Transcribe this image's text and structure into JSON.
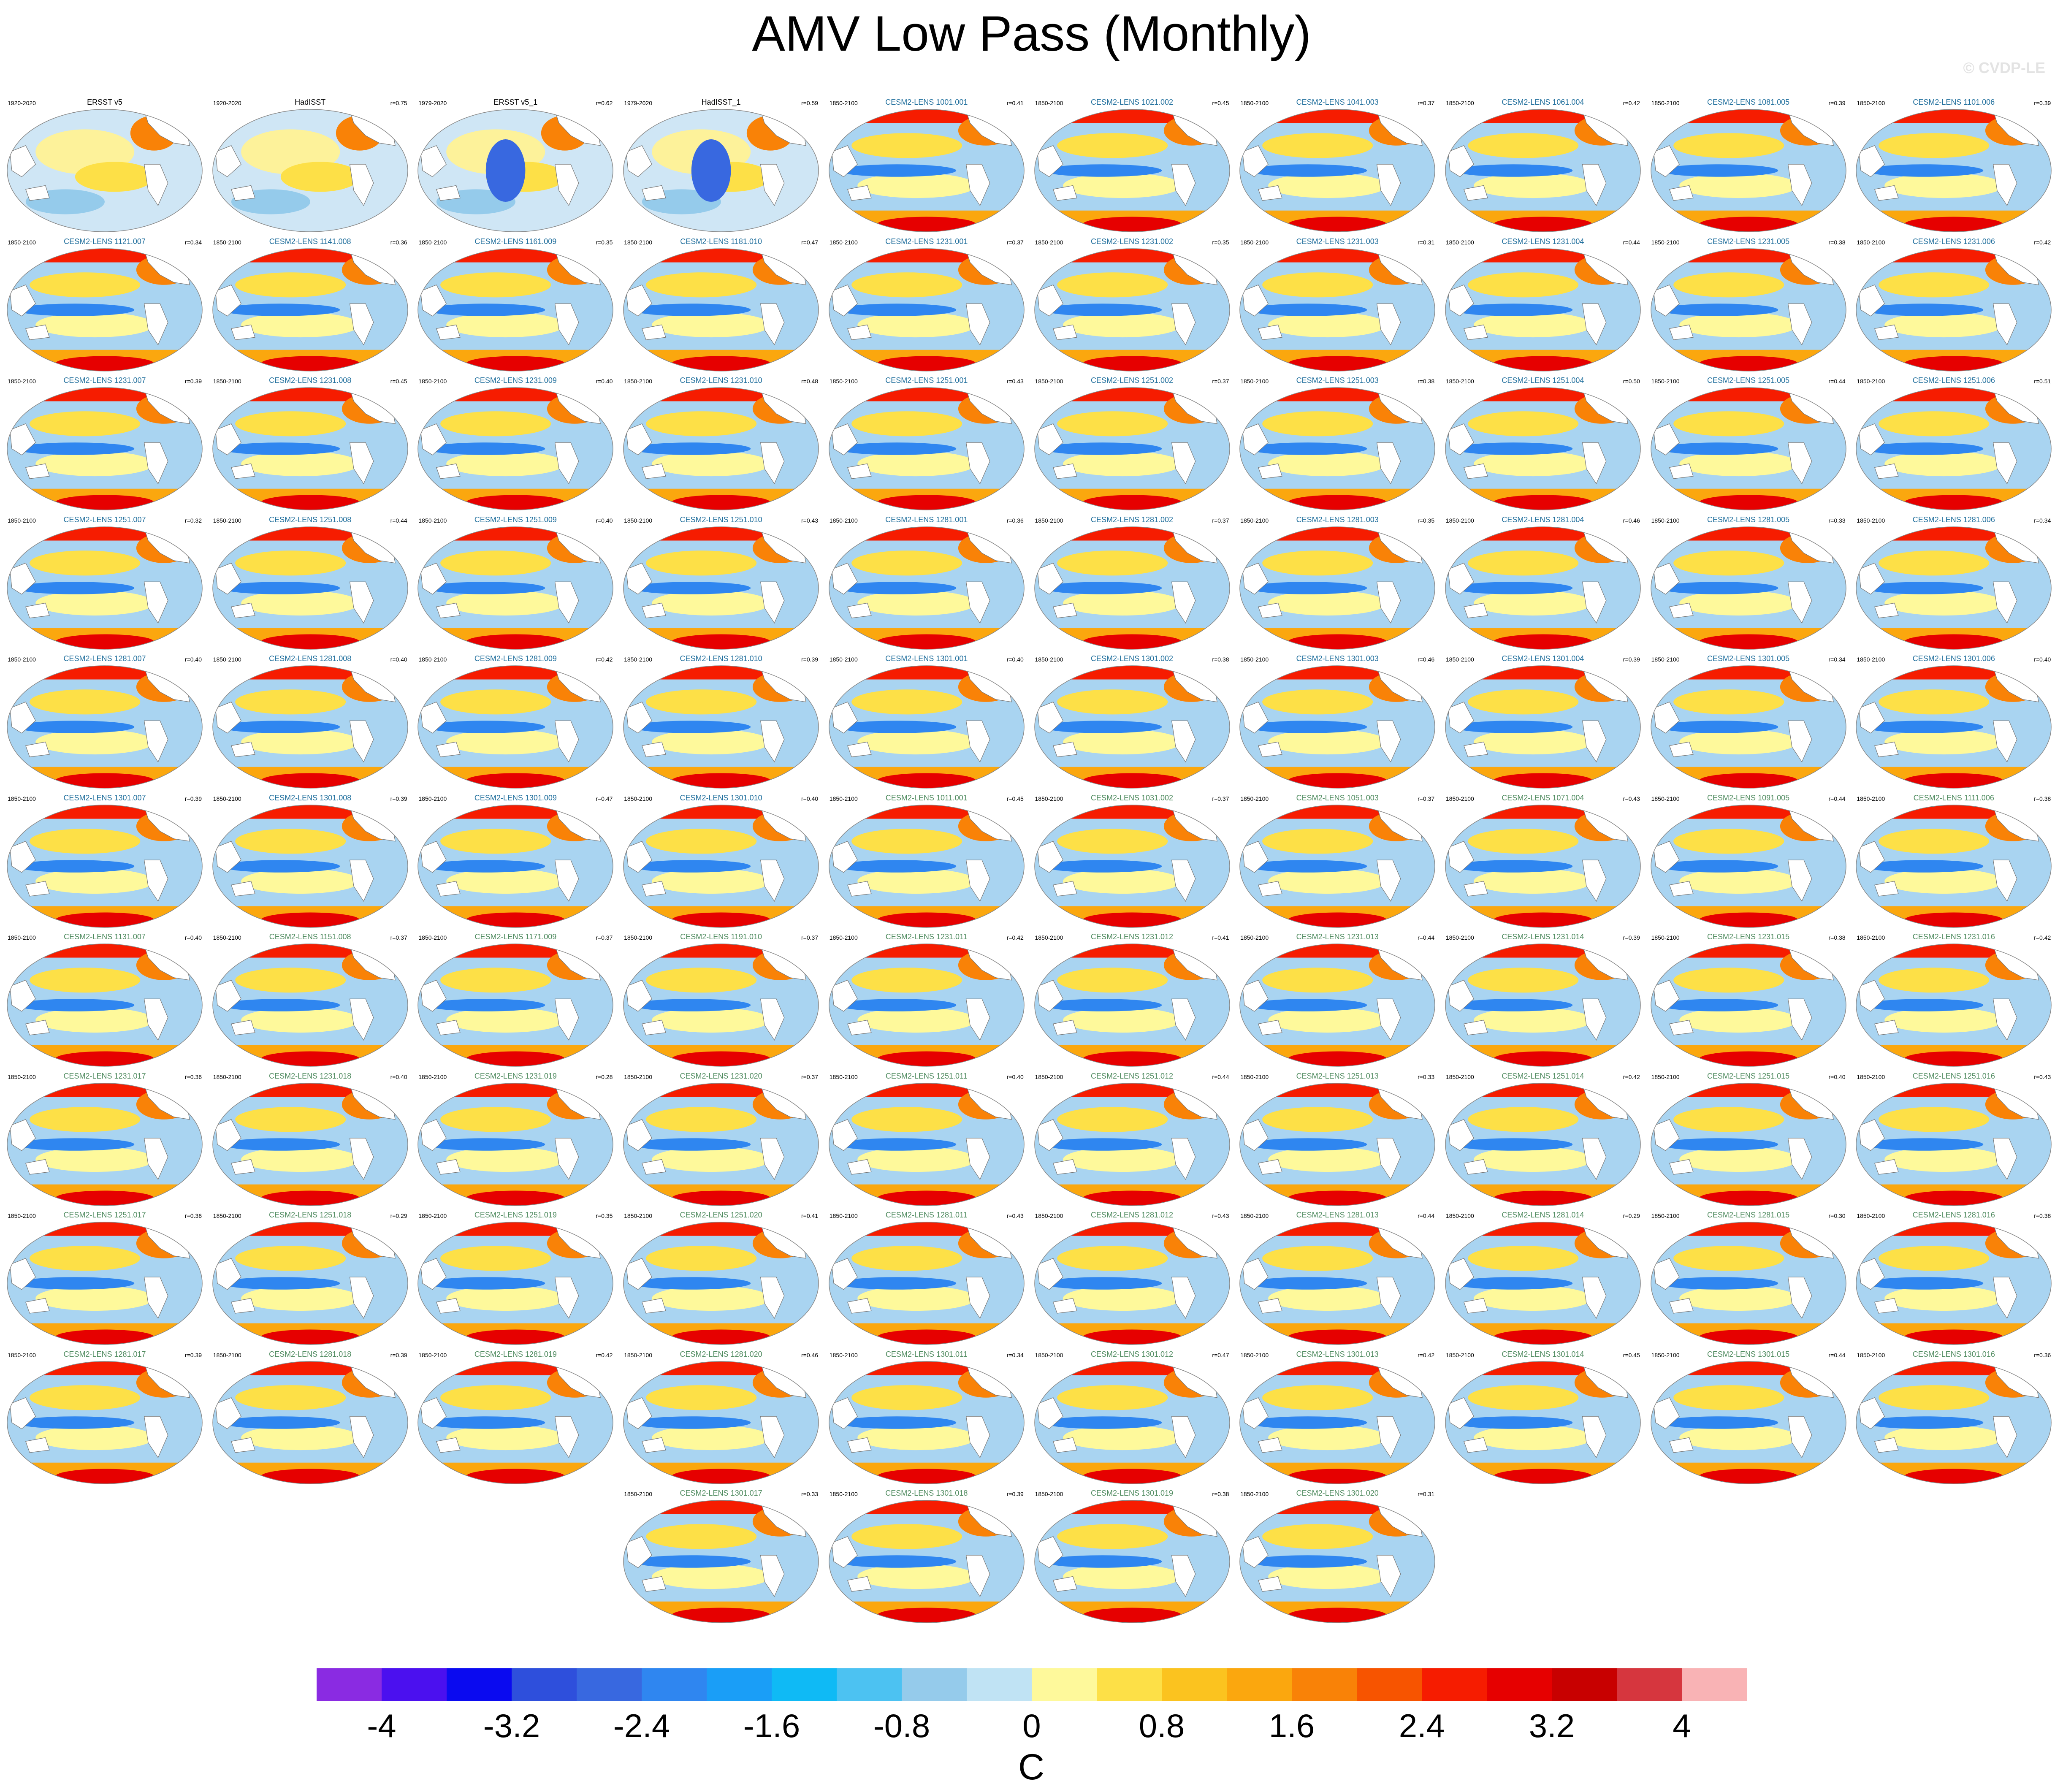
{
  "page": {
    "title": "AMV Low Pass (Monthly)",
    "watermark": "© CVDP-LE"
  },
  "panels": [
    {
      "title": "ERSST v5",
      "period": "1920-2020",
      "r": "",
      "kind": "obs"
    },
    {
      "title": "HadISST",
      "period": "1920-2020",
      "r": "r=0.75",
      "kind": "obs"
    },
    {
      "title": "ERSST v5_1",
      "period": "1979-2020",
      "r": "r=0.62",
      "kind": "obs"
    },
    {
      "title": "HadISST_1",
      "period": "1979-2020",
      "r": "r=0.59",
      "kind": "obs"
    },
    {
      "title": "CESM2-LENS 1001.001",
      "period": "1850-2100",
      "r": "r=0.41",
      "kind": "m1"
    },
    {
      "title": "CESM2-LENS 1021.002",
      "period": "1850-2100",
      "r": "r=0.45",
      "kind": "m1"
    },
    {
      "title": "CESM2-LENS 1041.003",
      "period": "1850-2100",
      "r": "r=0.37",
      "kind": "m1"
    },
    {
      "title": "CESM2-LENS 1061.004",
      "period": "1850-2100",
      "r": "r=0.42",
      "kind": "m1"
    },
    {
      "title": "CESM2-LENS 1081.005",
      "period": "1850-2100",
      "r": "r=0.39",
      "kind": "m1"
    },
    {
      "title": "CESM2-LENS 1101.006",
      "period": "1850-2100",
      "r": "r=0.39",
      "kind": "m1"
    },
    {
      "title": "CESM2-LENS 1121.007",
      "period": "1850-2100",
      "r": "r=0.34",
      "kind": "m1"
    },
    {
      "title": "CESM2-LENS 1141.008",
      "period": "1850-2100",
      "r": "r=0.36",
      "kind": "m1"
    },
    {
      "title": "CESM2-LENS 1161.009",
      "period": "1850-2100",
      "r": "r=0.35",
      "kind": "m1"
    },
    {
      "title": "CESM2-LENS 1181.010",
      "period": "1850-2100",
      "r": "r=0.47",
      "kind": "m1"
    },
    {
      "title": "CESM2-LENS 1231.001",
      "period": "1850-2100",
      "r": "r=0.37",
      "kind": "m1"
    },
    {
      "title": "CESM2-LENS 1231.002",
      "period": "1850-2100",
      "r": "r=0.35",
      "kind": "m1"
    },
    {
      "title": "CESM2-LENS 1231.003",
      "period": "1850-2100",
      "r": "r=0.31",
      "kind": "m1"
    },
    {
      "title": "CESM2-LENS 1231.004",
      "period": "1850-2100",
      "r": "r=0.44",
      "kind": "m1"
    },
    {
      "title": "CESM2-LENS 1231.005",
      "period": "1850-2100",
      "r": "r=0.38",
      "kind": "m1"
    },
    {
      "title": "CESM2-LENS 1231.006",
      "period": "1850-2100",
      "r": "r=0.42",
      "kind": "m1"
    },
    {
      "title": "CESM2-LENS 1231.007",
      "period": "1850-2100",
      "r": "r=0.39",
      "kind": "m1"
    },
    {
      "title": "CESM2-LENS 1231.008",
      "period": "1850-2100",
      "r": "r=0.45",
      "kind": "m1"
    },
    {
      "title": "CESM2-LENS 1231.009",
      "period": "1850-2100",
      "r": "r=0.40",
      "kind": "m1"
    },
    {
      "title": "CESM2-LENS 1231.010",
      "period": "1850-2100",
      "r": "r=0.48",
      "kind": "m1"
    },
    {
      "title": "CESM2-LENS 1251.001",
      "period": "1850-2100",
      "r": "r=0.43",
      "kind": "m1"
    },
    {
      "title": "CESM2-LENS 1251.002",
      "period": "1850-2100",
      "r": "r=0.37",
      "kind": "m1"
    },
    {
      "title": "CESM2-LENS 1251.003",
      "period": "1850-2100",
      "r": "r=0.38",
      "kind": "m1"
    },
    {
      "title": "CESM2-LENS 1251.004",
      "period": "1850-2100",
      "r": "r=0.50",
      "kind": "m1"
    },
    {
      "title": "CESM2-LENS 1251.005",
      "period": "1850-2100",
      "r": "r=0.44",
      "kind": "m1"
    },
    {
      "title": "CESM2-LENS 1251.006",
      "period": "1850-2100",
      "r": "r=0.51",
      "kind": "m1"
    },
    {
      "title": "CESM2-LENS 1251.007",
      "period": "1850-2100",
      "r": "r=0.32",
      "kind": "m1"
    },
    {
      "title": "CESM2-LENS 1251.008",
      "period": "1850-2100",
      "r": "r=0.44",
      "kind": "m1"
    },
    {
      "title": "CESM2-LENS 1251.009",
      "period": "1850-2100",
      "r": "r=0.40",
      "kind": "m1"
    },
    {
      "title": "CESM2-LENS 1251.010",
      "period": "1850-2100",
      "r": "r=0.43",
      "kind": "m1"
    },
    {
      "title": "CESM2-LENS 1281.001",
      "period": "1850-2100",
      "r": "r=0.36",
      "kind": "m1"
    },
    {
      "title": "CESM2-LENS 1281.002",
      "period": "1850-2100",
      "r": "r=0.37",
      "kind": "m1"
    },
    {
      "title": "CESM2-LENS 1281.003",
      "period": "1850-2100",
      "r": "r=0.35",
      "kind": "m1"
    },
    {
      "title": "CESM2-LENS 1281.004",
      "period": "1850-2100",
      "r": "r=0.46",
      "kind": "m1"
    },
    {
      "title": "CESM2-LENS 1281.005",
      "period": "1850-2100",
      "r": "r=0.33",
      "kind": "m1"
    },
    {
      "title": "CESM2-LENS 1281.006",
      "period": "1850-2100",
      "r": "r=0.34",
      "kind": "m1"
    },
    {
      "title": "CESM2-LENS 1281.007",
      "period": "1850-2100",
      "r": "r=0.40",
      "kind": "m1"
    },
    {
      "title": "CESM2-LENS 1281.008",
      "period": "1850-2100",
      "r": "r=0.40",
      "kind": "m1"
    },
    {
      "title": "CESM2-LENS 1281.009",
      "period": "1850-2100",
      "r": "r=0.42",
      "kind": "m1"
    },
    {
      "title": "CESM2-LENS 1281.010",
      "period": "1850-2100",
      "r": "r=0.39",
      "kind": "m1"
    },
    {
      "title": "CESM2-LENS 1301.001",
      "period": "1850-2100",
      "r": "r=0.40",
      "kind": "m1"
    },
    {
      "title": "CESM2-LENS 1301.002",
      "period": "1850-2100",
      "r": "r=0.38",
      "kind": "m1"
    },
    {
      "title": "CESM2-LENS 1301.003",
      "period": "1850-2100",
      "r": "r=0.46",
      "kind": "m1"
    },
    {
      "title": "CESM2-LENS 1301.004",
      "period": "1850-2100",
      "r": "r=0.39",
      "kind": "m1"
    },
    {
      "title": "CESM2-LENS 1301.005",
      "period": "1850-2100",
      "r": "r=0.34",
      "kind": "m1"
    },
    {
      "title": "CESM2-LENS 1301.006",
      "period": "1850-2100",
      "r": "r=0.40",
      "kind": "m1"
    },
    {
      "title": "CESM2-LENS 1301.007",
      "period": "1850-2100",
      "r": "r=0.39",
      "kind": "m1"
    },
    {
      "title": "CESM2-LENS 1301.008",
      "period": "1850-2100",
      "r": "r=0.39",
      "kind": "m1"
    },
    {
      "title": "CESM2-LENS 1301.009",
      "period": "1850-2100",
      "r": "r=0.47",
      "kind": "m1"
    },
    {
      "title": "CESM2-LENS 1301.010",
      "period": "1850-2100",
      "r": "r=0.40",
      "kind": "m1"
    },
    {
      "title": "CESM2-LENS 1011.001",
      "period": "1850-2100",
      "r": "r=0.45",
      "kind": "m2"
    },
    {
      "title": "CESM2-LENS 1031.002",
      "period": "1850-2100",
      "r": "r=0.37",
      "kind": "m2"
    },
    {
      "title": "CESM2-LENS 1051.003",
      "period": "1850-2100",
      "r": "r=0.37",
      "kind": "m2"
    },
    {
      "title": "CESM2-LENS 1071.004",
      "period": "1850-2100",
      "r": "r=0.43",
      "kind": "m2"
    },
    {
      "title": "CESM2-LENS 1091.005",
      "period": "1850-2100",
      "r": "r=0.44",
      "kind": "m2"
    },
    {
      "title": "CESM2-LENS 1111.006",
      "period": "1850-2100",
      "r": "r=0.38",
      "kind": "m2"
    },
    {
      "title": "CESM2-LENS 1131.007",
      "period": "1850-2100",
      "r": "r=0.40",
      "kind": "m2"
    },
    {
      "title": "CESM2-LENS 1151.008",
      "period": "1850-2100",
      "r": "r=0.37",
      "kind": "m2"
    },
    {
      "title": "CESM2-LENS 1171.009",
      "period": "1850-2100",
      "r": "r=0.37",
      "kind": "m2"
    },
    {
      "title": "CESM2-LENS 1191.010",
      "period": "1850-2100",
      "r": "r=0.37",
      "kind": "m2"
    },
    {
      "title": "CESM2-LENS 1231.011",
      "period": "1850-2100",
      "r": "r=0.42",
      "kind": "m2"
    },
    {
      "title": "CESM2-LENS 1231.012",
      "period": "1850-2100",
      "r": "r=0.41",
      "kind": "m2"
    },
    {
      "title": "CESM2-LENS 1231.013",
      "period": "1850-2100",
      "r": "r=0.44",
      "kind": "m2"
    },
    {
      "title": "CESM2-LENS 1231.014",
      "period": "1850-2100",
      "r": "r=0.39",
      "kind": "m2"
    },
    {
      "title": "CESM2-LENS 1231.015",
      "period": "1850-2100",
      "r": "r=0.38",
      "kind": "m2"
    },
    {
      "title": "CESM2-LENS 1231.016",
      "period": "1850-2100",
      "r": "r=0.42",
      "kind": "m2"
    },
    {
      "title": "CESM2-LENS 1231.017",
      "period": "1850-2100",
      "r": "r=0.36",
      "kind": "m2"
    },
    {
      "title": "CESM2-LENS 1231.018",
      "period": "1850-2100",
      "r": "r=0.40",
      "kind": "m2"
    },
    {
      "title": "CESM2-LENS 1231.019",
      "period": "1850-2100",
      "r": "r=0.28",
      "kind": "m2"
    },
    {
      "title": "CESM2-LENS 1231.020",
      "period": "1850-2100",
      "r": "r=0.37",
      "kind": "m2"
    },
    {
      "title": "CESM2-LENS 1251.011",
      "period": "1850-2100",
      "r": "r=0.40",
      "kind": "m2"
    },
    {
      "title": "CESM2-LENS 1251.012",
      "period": "1850-2100",
      "r": "r=0.44",
      "kind": "m2"
    },
    {
      "title": "CESM2-LENS 1251.013",
      "period": "1850-2100",
      "r": "r=0.33",
      "kind": "m2"
    },
    {
      "title": "CESM2-LENS 1251.014",
      "period": "1850-2100",
      "r": "r=0.42",
      "kind": "m2"
    },
    {
      "title": "CESM2-LENS 1251.015",
      "period": "1850-2100",
      "r": "r=0.40",
      "kind": "m2"
    },
    {
      "title": "CESM2-LENS 1251.016",
      "period": "1850-2100",
      "r": "r=0.43",
      "kind": "m2"
    },
    {
      "title": "CESM2-LENS 1251.017",
      "period": "1850-2100",
      "r": "r=0.36",
      "kind": "m2"
    },
    {
      "title": "CESM2-LENS 1251.018",
      "period": "1850-2100",
      "r": "r=0.29",
      "kind": "m2"
    },
    {
      "title": "CESM2-LENS 1251.019",
      "period": "1850-2100",
      "r": "r=0.35",
      "kind": "m2"
    },
    {
      "title": "CESM2-LENS 1251.020",
      "period": "1850-2100",
      "r": "r=0.41",
      "kind": "m2"
    },
    {
      "title": "CESM2-LENS 1281.011",
      "period": "1850-2100",
      "r": "r=0.43",
      "kind": "m2"
    },
    {
      "title": "CESM2-LENS 1281.012",
      "period": "1850-2100",
      "r": "r=0.43",
      "kind": "m2"
    },
    {
      "title": "CESM2-LENS 1281.013",
      "period": "1850-2100",
      "r": "r=0.44",
      "kind": "m2"
    },
    {
      "title": "CESM2-LENS 1281.014",
      "period": "1850-2100",
      "r": "r=0.29",
      "kind": "m2"
    },
    {
      "title": "CESM2-LENS 1281.015",
      "period": "1850-2100",
      "r": "r=0.30",
      "kind": "m2"
    },
    {
      "title": "CESM2-LENS 1281.016",
      "period": "1850-2100",
      "r": "r=0.38",
      "kind": "m2"
    },
    {
      "title": "CESM2-LENS 1281.017",
      "period": "1850-2100",
      "r": "r=0.39",
      "kind": "m2"
    },
    {
      "title": "CESM2-LENS 1281.018",
      "period": "1850-2100",
      "r": "r=0.39",
      "kind": "m2"
    },
    {
      "title": "CESM2-LENS 1281.019",
      "period": "1850-2100",
      "r": "r=0.42",
      "kind": "m2"
    },
    {
      "title": "CESM2-LENS 1281.020",
      "period": "1850-2100",
      "r": "r=0.46",
      "kind": "m2"
    },
    {
      "title": "CESM2-LENS 1301.011",
      "period": "1850-2100",
      "r": "r=0.34",
      "kind": "m2"
    },
    {
      "title": "CESM2-LENS 1301.012",
      "period": "1850-2100",
      "r": "r=0.47",
      "kind": "m2"
    },
    {
      "title": "CESM2-LENS 1301.013",
      "period": "1850-2100",
      "r": "r=0.42",
      "kind": "m2"
    },
    {
      "title": "CESM2-LENS 1301.014",
      "period": "1850-2100",
      "r": "r=0.45",
      "kind": "m2"
    },
    {
      "title": "CESM2-LENS 1301.015",
      "period": "1850-2100",
      "r": "r=0.44",
      "kind": "m2"
    },
    {
      "title": "CESM2-LENS 1301.016",
      "period": "1850-2100",
      "r": "r=0.36",
      "kind": "m2"
    },
    {
      "title": "CESM2-LENS 1301.017",
      "period": "1850-2100",
      "r": "r=0.33",
      "kind": "m2"
    },
    {
      "title": "CESM2-LENS 1301.018",
      "period": "1850-2100",
      "r": "r=0.39",
      "kind": "m2"
    },
    {
      "title": "CESM2-LENS 1301.019",
      "period": "1850-2100",
      "r": "r=0.38",
      "kind": "m2"
    },
    {
      "title": "CESM2-LENS 1301.020",
      "period": "1850-2100",
      "r": "r=0.31",
      "kind": "m2"
    }
  ],
  "title_colors": {
    "obs": "#000000",
    "m1": "#1f6e9c",
    "m2": "#4e8a5e"
  },
  "colorbar": {
    "colors": [
      "#8a2be2",
      "#4b10ef",
      "#0a0af0",
      "#2e4fdc",
      "#3868e0",
      "#2f86f0",
      "#1a9ef7",
      "#0fbaf5",
      "#4cc2f2",
      "#95cbeb",
      "#c0e3f4",
      "#fef99b",
      "#fde047",
      "#fbc31f",
      "#fba70e",
      "#f98207",
      "#f75400",
      "#f61c00",
      "#e60000",
      "#c80000",
      "#d6363e",
      "#f9b3b5"
    ],
    "tick_labels": [
      "-4",
      "-3.2",
      "-2.4",
      "-1.6",
      "-0.8",
      "0",
      "0.8",
      "1.6",
      "2.4",
      "3.2",
      "4"
    ],
    "unit": "C"
  }
}
